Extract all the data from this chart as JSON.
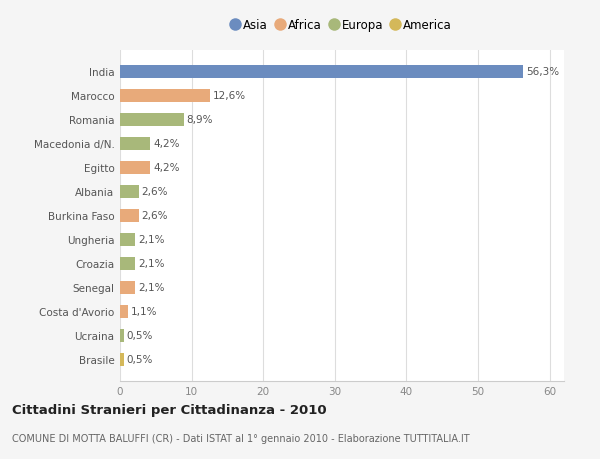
{
  "categories": [
    "India",
    "Marocco",
    "Romania",
    "Macedonia d/N.",
    "Egitto",
    "Albania",
    "Burkina Faso",
    "Ungheria",
    "Croazia",
    "Senegal",
    "Costa d'Avorio",
    "Ucraina",
    "Brasile"
  ],
  "values": [
    56.3,
    12.6,
    8.9,
    4.2,
    4.2,
    2.6,
    2.6,
    2.1,
    2.1,
    2.1,
    1.1,
    0.5,
    0.5
  ],
  "labels": [
    "56,3%",
    "12,6%",
    "8,9%",
    "4,2%",
    "4,2%",
    "2,6%",
    "2,6%",
    "2,1%",
    "2,1%",
    "2,1%",
    "1,1%",
    "0,5%",
    "0,5%"
  ],
  "colors": [
    "#6b8cbf",
    "#e8aa7a",
    "#a8b87a",
    "#a8b87a",
    "#e8aa7a",
    "#a8b87a",
    "#e8aa7a",
    "#a8b87a",
    "#a8b87a",
    "#e8aa7a",
    "#e8aa7a",
    "#a8b87a",
    "#d4b85a"
  ],
  "continent_colors": {
    "Asia": "#6b8cbf",
    "Africa": "#e8aa7a",
    "Europa": "#a8b87a",
    "America": "#d4b85a"
  },
  "legend_order": [
    "Asia",
    "Africa",
    "Europa",
    "America"
  ],
  "title": "Cittadini Stranieri per Cittadinanza - 2010",
  "subtitle": "COMUNE DI MOTTA BALUFFI (CR) - Dati ISTAT al 1° gennaio 2010 - Elaborazione TUTTITALIA.IT",
  "xlim": [
    0,
    62
  ],
  "xticks": [
    0,
    10,
    20,
    30,
    40,
    50,
    60
  ],
  "background_color": "#f5f5f5",
  "plot_bg_color": "#ffffff"
}
